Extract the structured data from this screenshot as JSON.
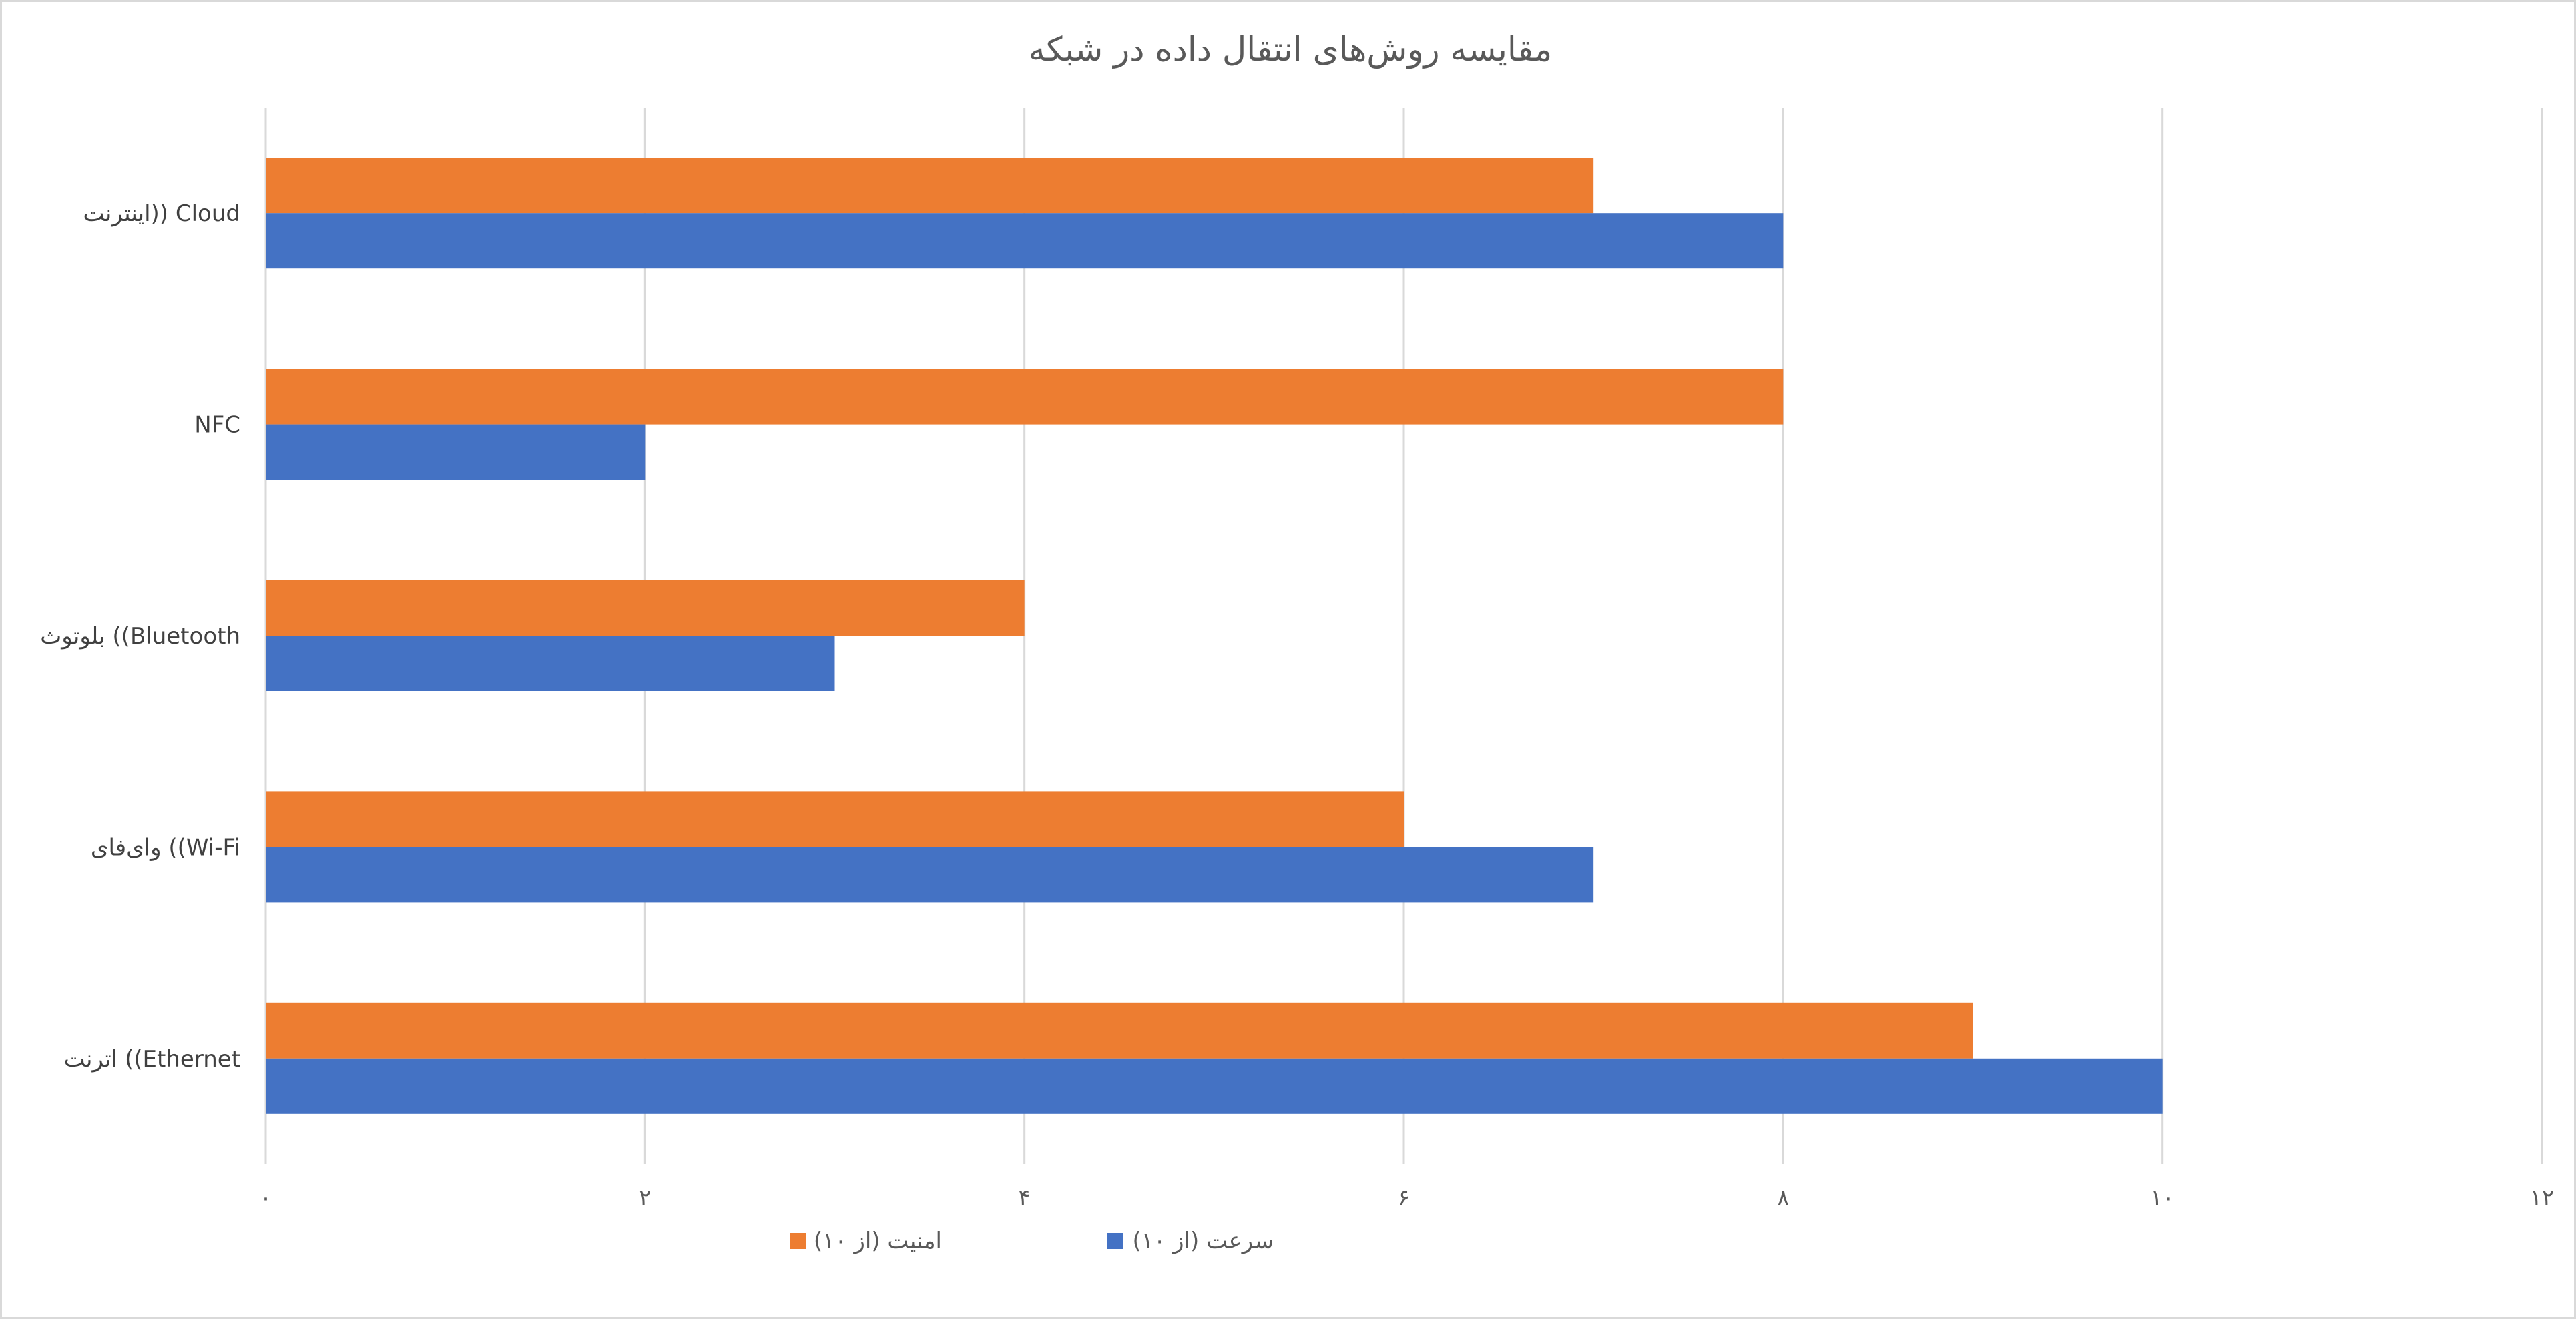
{
  "chart_data": {
    "type": "bar",
    "orientation": "horizontal",
    "title": "مقایسه روش‌های انتقال داده در شبکه",
    "categories": [
      "اترنت ((Ethernet",
      "وای‌فای ((Wi-Fi",
      "بلوتوث ((Bluetooth",
      "NFC",
      "اینترنت)) Cloud"
    ],
    "series": [
      {
        "name": "سرعت (از ۱۰)",
        "color": "#4472C4",
        "values": [
          10,
          7,
          3,
          2,
          8
        ]
      },
      {
        "name": "امنیت (از ۱۰)",
        "color": "#ED7D31",
        "values": [
          9,
          6,
          4,
          8,
          7
        ]
      }
    ],
    "xlim": [
      0,
      12
    ],
    "xticks": [
      0,
      2,
      4,
      6,
      8,
      10,
      12
    ],
    "xtick_labels": [
      "۰",
      "۲",
      "۴",
      "۶",
      "۸",
      "۱۰",
      "۱۲"
    ],
    "grid": true,
    "legend_position": "bottom"
  }
}
